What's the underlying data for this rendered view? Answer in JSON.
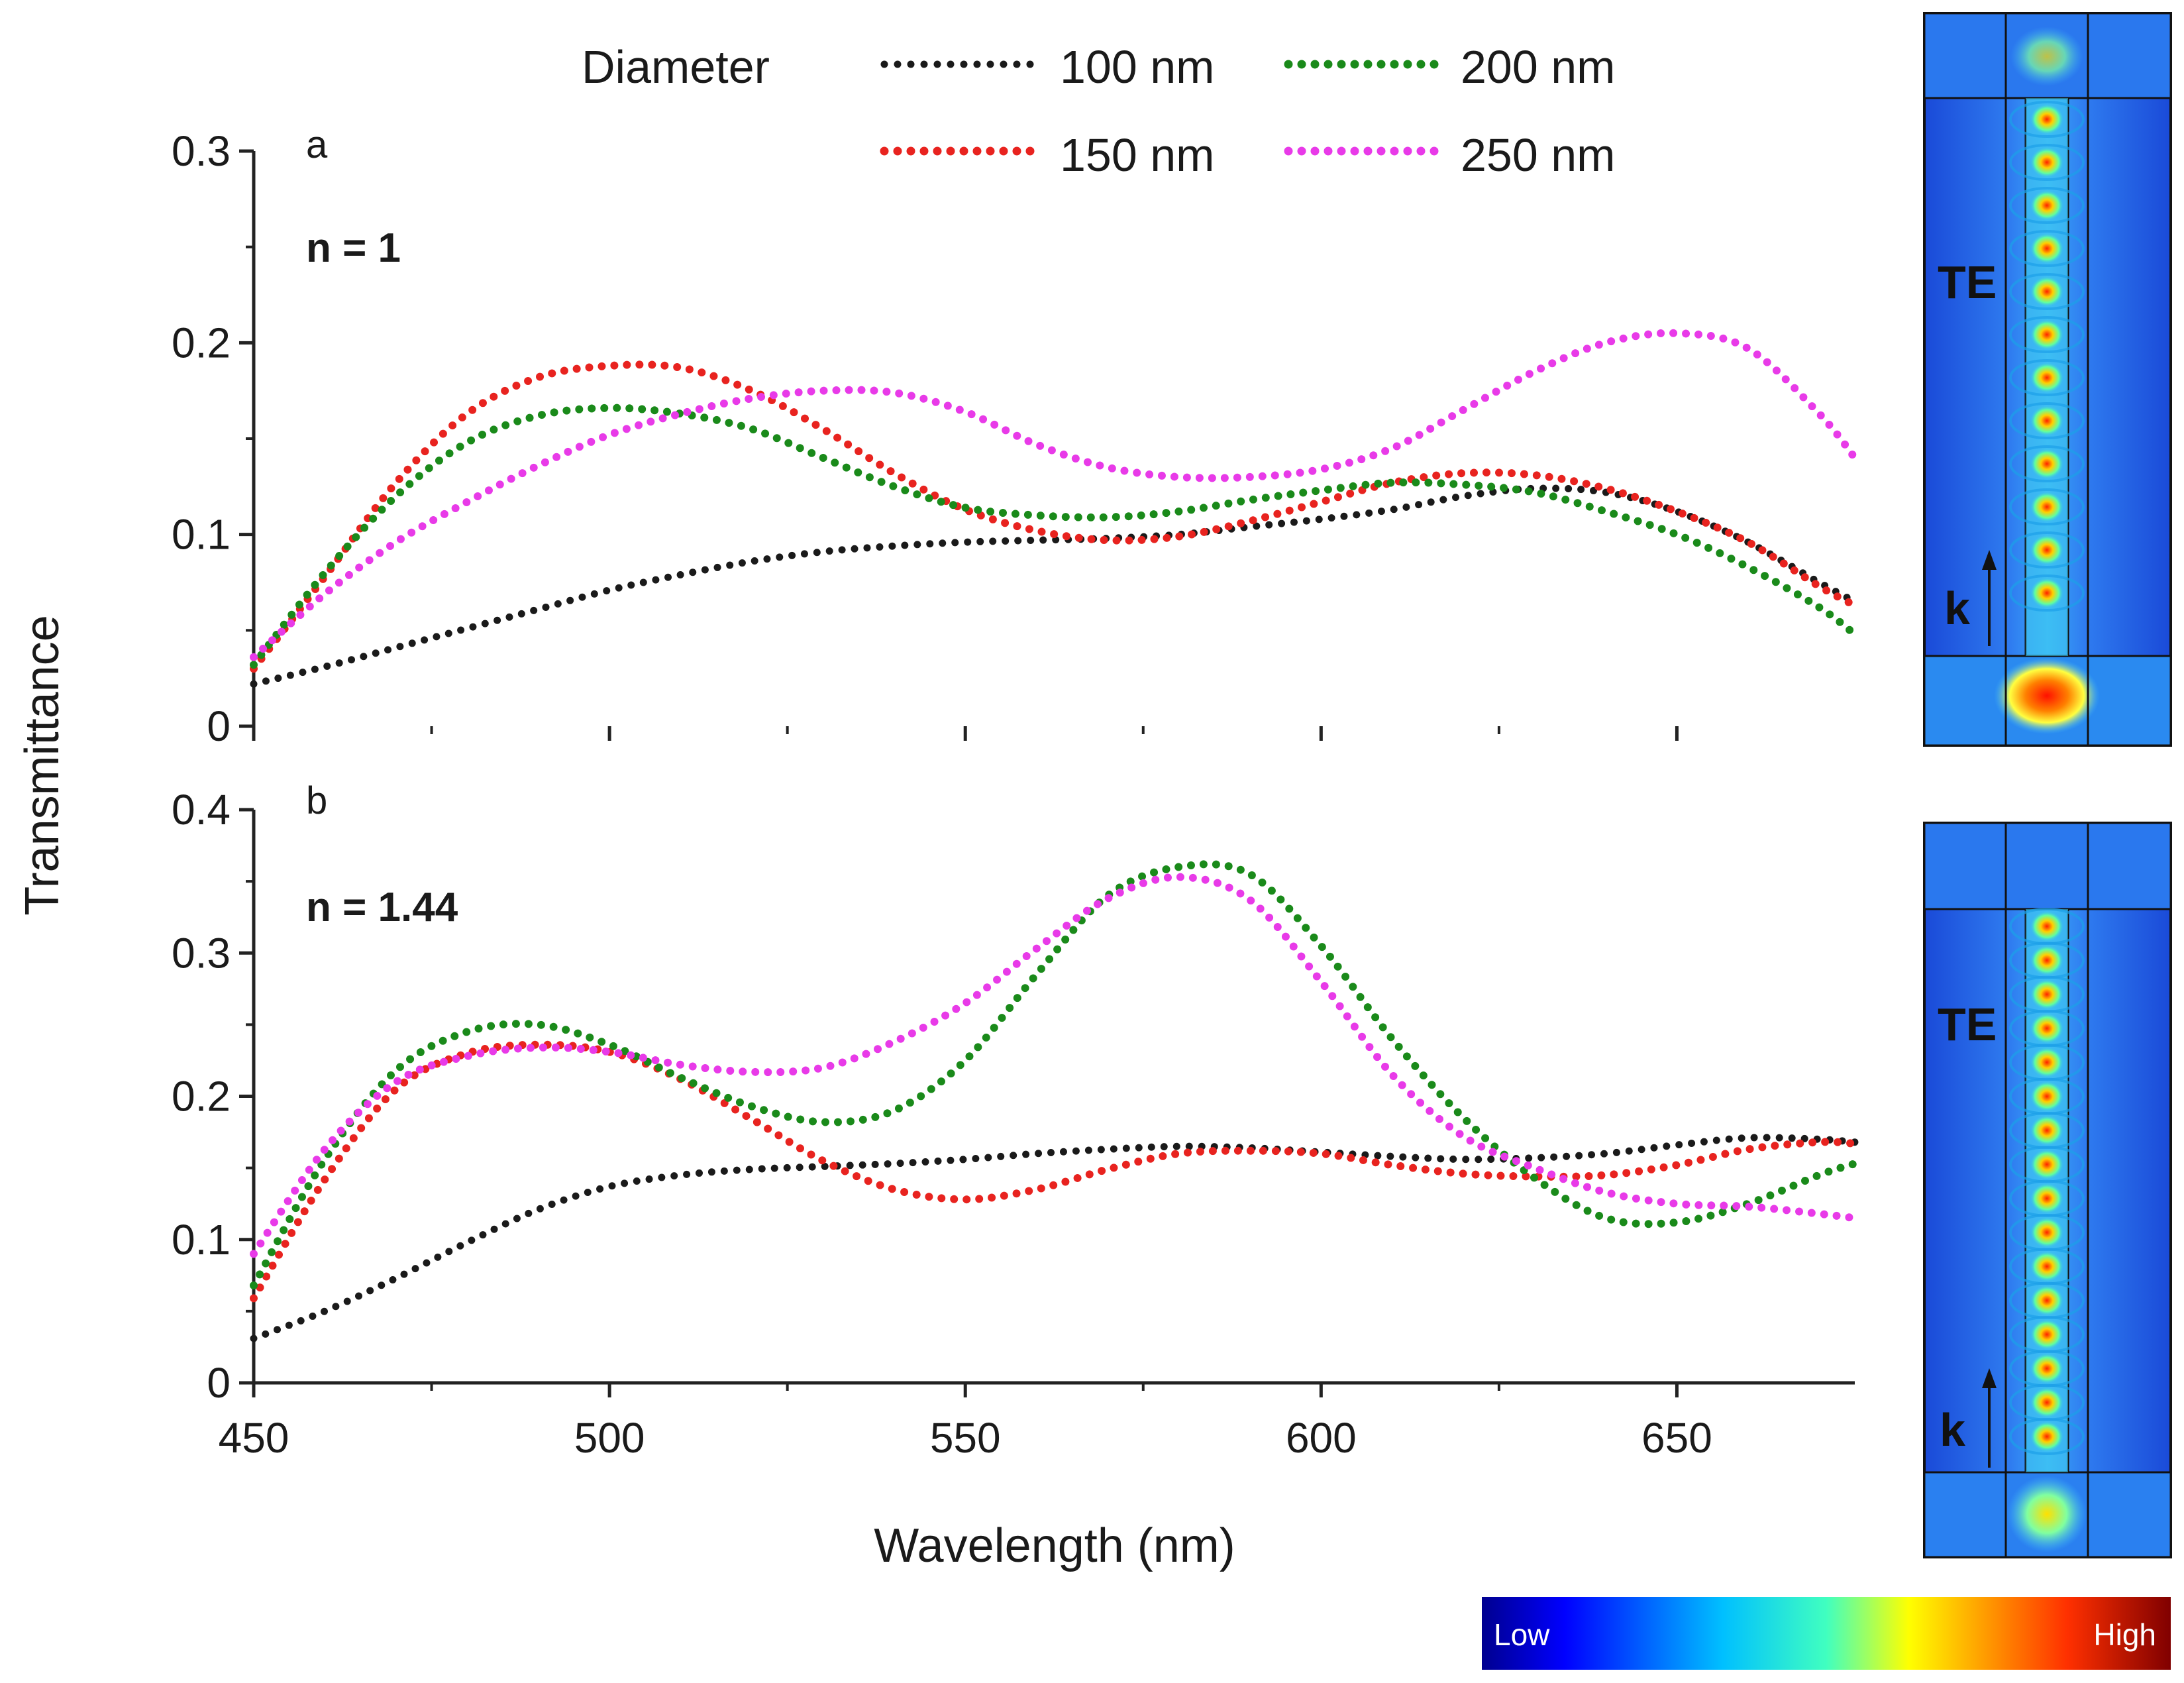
{
  "legend": {
    "title": "Diameter",
    "entries": [
      {
        "label": "100 nm",
        "color": "#1a1a1a"
      },
      {
        "label": "200 nm",
        "color": "#1a8a1a"
      },
      {
        "label": "150 nm",
        "color": "#e8231f"
      },
      {
        "label": "250 nm",
        "color": "#e83ae8"
      }
    ]
  },
  "shared_xlabel": "Wavelength (nm)",
  "shared_ylabel": "Transmittance",
  "chart_data": [
    {
      "type": "line",
      "panel": "a",
      "annotation": "n = 1",
      "xlabel": "Wavelength (nm)",
      "ylabel": "Transmittance",
      "xlim": [
        450,
        675
      ],
      "ylim": [
        0,
        0.3
      ],
      "xticks": [
        450,
        500,
        550,
        600,
        650
      ],
      "yticks": [
        0,
        0.1,
        0.2,
        0.3
      ],
      "ytick_labels": [
        "0",
        "0.1",
        "0.2",
        "0.3"
      ],
      "x": [
        450,
        460,
        470,
        480,
        490,
        500,
        510,
        520,
        530,
        540,
        550,
        560,
        570,
        580,
        590,
        600,
        610,
        620,
        630,
        640,
        650,
        660,
        670,
        675
      ],
      "series": [
        {
          "name": "100 nm",
          "color": "#1a1a1a",
          "values": [
            0.022,
            0.031,
            0.041,
            0.051,
            0.061,
            0.071,
            0.079,
            0.086,
            0.091,
            0.094,
            0.096,
            0.097,
            0.098,
            0.1,
            0.104,
            0.108,
            0.113,
            0.12,
            0.124,
            0.122,
            0.112,
            0.096,
            0.075,
            0.065
          ]
        },
        {
          "name": "150 nm",
          "color": "#e8231f",
          "values": [
            0.03,
            0.078,
            0.127,
            0.163,
            0.182,
            0.188,
            0.187,
            0.175,
            0.155,
            0.132,
            0.113,
            0.102,
            0.097,
            0.099,
            0.107,
            0.117,
            0.127,
            0.132,
            0.131,
            0.124,
            0.112,
            0.096,
            0.073,
            0.063
          ]
        },
        {
          "name": "200 nm",
          "color": "#1a8a1a",
          "values": [
            0.032,
            0.08,
            0.12,
            0.148,
            0.162,
            0.166,
            0.163,
            0.155,
            0.14,
            0.125,
            0.114,
            0.11,
            0.109,
            0.112,
            0.118,
            0.123,
            0.127,
            0.126,
            0.122,
            0.112,
            0.1,
            0.083,
            0.062,
            0.048
          ]
        },
        {
          "name": "250 nm",
          "color": "#e83ae8",
          "values": [
            0.036,
            0.069,
            0.096,
            0.117,
            0.136,
            0.152,
            0.163,
            0.171,
            0.175,
            0.174,
            0.164,
            0.147,
            0.135,
            0.13,
            0.13,
            0.134,
            0.145,
            0.165,
            0.185,
            0.2,
            0.205,
            0.197,
            0.163,
            0.14
          ]
        }
      ]
    },
    {
      "type": "line",
      "panel": "b",
      "annotation": "n = 1.44",
      "xlabel": "Wavelength (nm)",
      "ylabel": "Transmittance",
      "xlim": [
        450,
        675
      ],
      "ylim": [
        0,
        0.4
      ],
      "xticks": [
        450,
        500,
        550,
        600,
        650
      ],
      "xtick_labels": [
        "450",
        "500",
        "550",
        "600",
        "650"
      ],
      "yticks": [
        0,
        0.1,
        0.2,
        0.3,
        0.4
      ],
      "ytick_labels": [
        "0",
        "0.1",
        "0.2",
        "0.3",
        "0.4"
      ],
      "x": [
        450,
        460,
        470,
        480,
        490,
        500,
        510,
        520,
        530,
        540,
        550,
        560,
        570,
        580,
        590,
        600,
        610,
        620,
        630,
        640,
        650,
        660,
        670,
        675
      ],
      "series": [
        {
          "name": "100 nm",
          "color": "#1a1a1a",
          "values": [
            0.031,
            0.05,
            0.073,
            0.098,
            0.121,
            0.137,
            0.145,
            0.149,
            0.151,
            0.153,
            0.156,
            0.16,
            0.163,
            0.165,
            0.164,
            0.161,
            0.158,
            0.156,
            0.157,
            0.16,
            0.166,
            0.171,
            0.17,
            0.168
          ]
        },
        {
          "name": "150 nm",
          "color": "#e8231f",
          "values": [
            0.059,
            0.142,
            0.205,
            0.23,
            0.236,
            0.231,
            0.212,
            0.184,
            0.155,
            0.135,
            0.128,
            0.135,
            0.149,
            0.16,
            0.162,
            0.16,
            0.152,
            0.146,
            0.144,
            0.145,
            0.152,
            0.163,
            0.168,
            0.167
          ]
        },
        {
          "name": "200 nm",
          "color": "#1a8a1a",
          "values": [
            0.068,
            0.156,
            0.218,
            0.245,
            0.25,
            0.236,
            0.213,
            0.193,
            0.182,
            0.19,
            0.225,
            0.285,
            0.34,
            0.36,
            0.355,
            0.305,
            0.24,
            0.185,
            0.143,
            0.115,
            0.112,
            0.125,
            0.145,
            0.153
          ]
        },
        {
          "name": "250 nm",
          "color": "#e83ae8",
          "values": [
            0.09,
            0.163,
            0.21,
            0.228,
            0.234,
            0.231,
            0.222,
            0.217,
            0.22,
            0.238,
            0.265,
            0.303,
            0.338,
            0.353,
            0.337,
            0.28,
            0.215,
            0.172,
            0.15,
            0.133,
            0.125,
            0.123,
            0.118,
            0.115
          ]
        }
      ]
    }
  ],
  "field_maps": [
    {
      "mode_label": "TE",
      "wavevector_label": "k"
    },
    {
      "mode_label": "TE",
      "wavevector_label": "k"
    }
  ],
  "colorbar": {
    "low_label": "Low",
    "high_label": "High"
  }
}
